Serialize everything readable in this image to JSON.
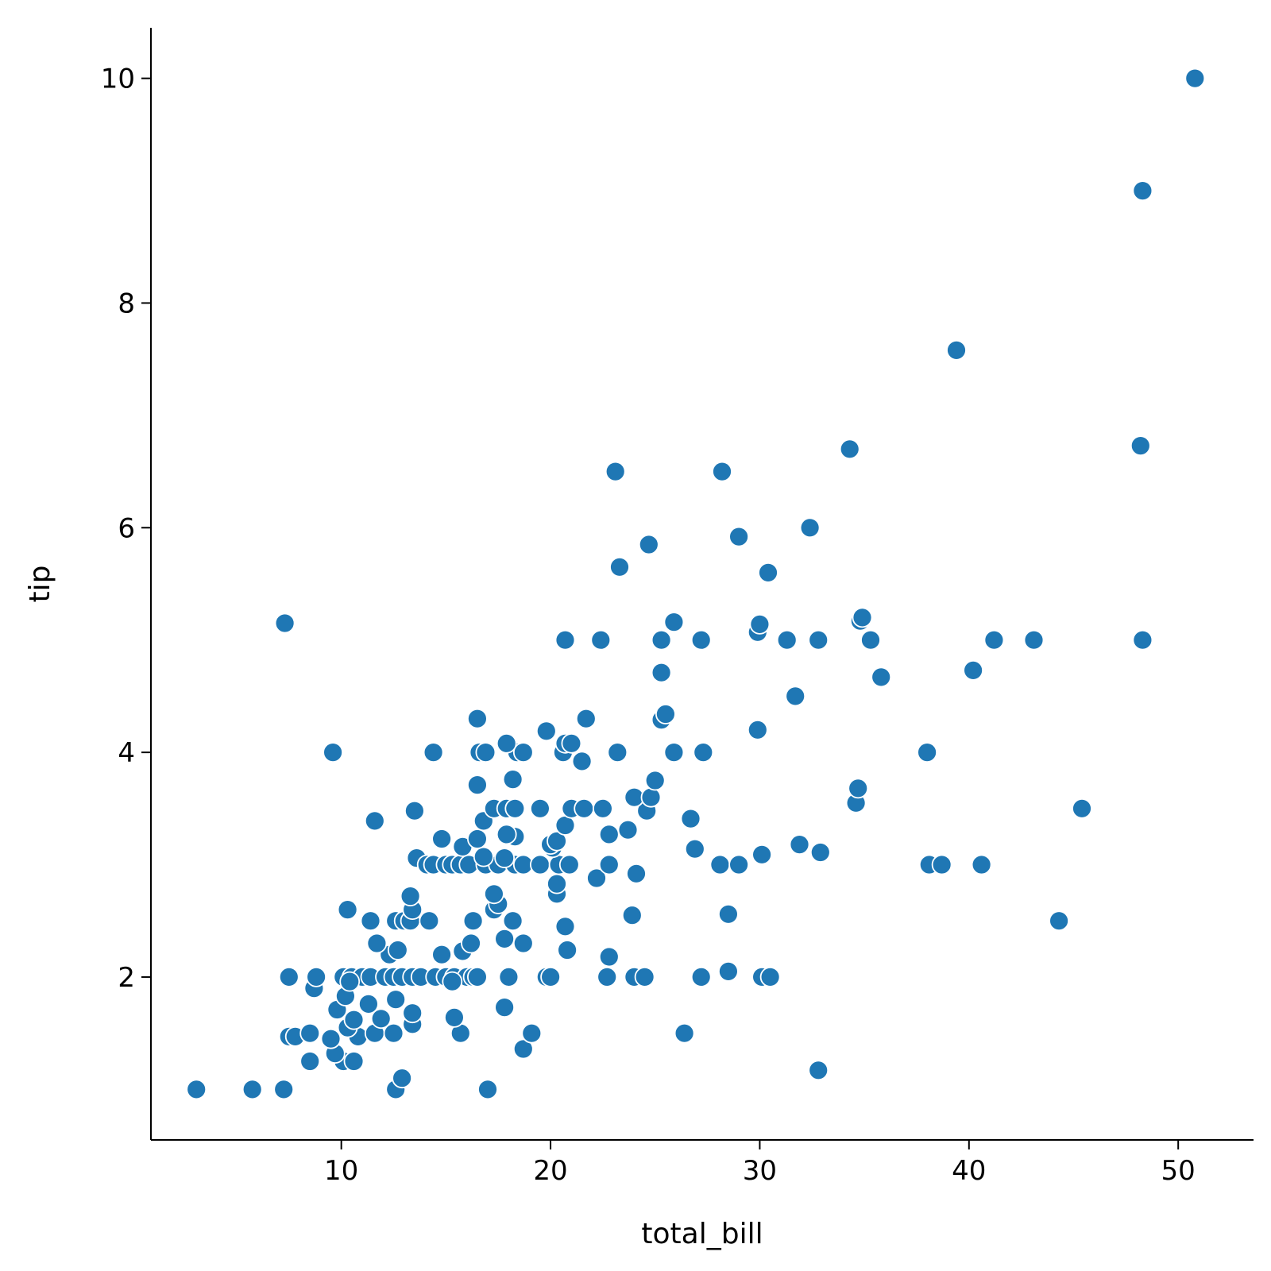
{
  "chart_data": {
    "type": "scatter",
    "title": "",
    "xlabel": "total_bill",
    "ylabel": "tip",
    "xlim": [
      0.9,
      53.6
    ],
    "ylim": [
      0.55,
      10.45
    ],
    "xticks": [
      10,
      20,
      30,
      40,
      50
    ],
    "yticks": [
      2,
      4,
      6,
      8,
      10
    ],
    "grid": false,
    "color": "#1f77b4",
    "points": [
      [
        3.07,
        1.0
      ],
      [
        5.75,
        1.0
      ],
      [
        7.25,
        1.0
      ],
      [
        12.6,
        1.0
      ],
      [
        17.0,
        1.0
      ],
      [
        32.8,
        1.17
      ],
      [
        12.9,
        1.1
      ],
      [
        18.7,
        1.36
      ],
      [
        8.5,
        1.25
      ],
      [
        10.1,
        1.25
      ],
      [
        10.6,
        1.25
      ],
      [
        9.7,
        1.32
      ],
      [
        9.5,
        1.45
      ],
      [
        7.5,
        1.47
      ],
      [
        7.8,
        1.47
      ],
      [
        8.5,
        1.5
      ],
      [
        10.8,
        1.47
      ],
      [
        11.6,
        1.5
      ],
      [
        12.5,
        1.5
      ],
      [
        15.7,
        1.5
      ],
      [
        19.1,
        1.5
      ],
      [
        26.4,
        1.5
      ],
      [
        10.3,
        1.55
      ],
      [
        10.6,
        1.62
      ],
      [
        11.9,
        1.63
      ],
      [
        15.4,
        1.64
      ],
      [
        13.4,
        1.58
      ],
      [
        13.4,
        1.68
      ],
      [
        9.8,
        1.71
      ],
      [
        11.3,
        1.76
      ],
      [
        12.6,
        1.8
      ],
      [
        17.8,
        1.73
      ],
      [
        10.2,
        1.83
      ],
      [
        8.7,
        1.9
      ],
      [
        7.5,
        2.0
      ],
      [
        8.8,
        2.0
      ],
      [
        10.1,
        2.0
      ],
      [
        10.5,
        2.0
      ],
      [
        11.0,
        2.0
      ],
      [
        11.4,
        2.0
      ],
      [
        12.1,
        2.0
      ],
      [
        12.5,
        2.0
      ],
      [
        12.9,
        2.0
      ],
      [
        13.4,
        2.0
      ],
      [
        13.8,
        2.0
      ],
      [
        14.5,
        2.0
      ],
      [
        15.0,
        2.0
      ],
      [
        15.4,
        2.0
      ],
      [
        16.0,
        2.0
      ],
      [
        16.3,
        2.0
      ],
      [
        16.5,
        2.0
      ],
      [
        18.0,
        2.0
      ],
      [
        19.8,
        2.0
      ],
      [
        20.0,
        2.0
      ],
      [
        22.7,
        2.0
      ],
      [
        24.0,
        2.0
      ],
      [
        24.5,
        2.0
      ],
      [
        27.2,
        2.0
      ],
      [
        30.1,
        2.0
      ],
      [
        30.5,
        2.0
      ],
      [
        15.3,
        1.96
      ],
      [
        28.5,
        2.05
      ],
      [
        10.4,
        1.96
      ],
      [
        14.8,
        2.2
      ],
      [
        15.8,
        2.23
      ],
      [
        12.3,
        2.2
      ],
      [
        12.7,
        2.24
      ],
      [
        20.8,
        2.24
      ],
      [
        22.8,
        2.18
      ],
      [
        11.7,
        2.3
      ],
      [
        16.2,
        2.3
      ],
      [
        18.7,
        2.3
      ],
      [
        17.8,
        2.34
      ],
      [
        20.7,
        2.45
      ],
      [
        11.4,
        2.5
      ],
      [
        12.6,
        2.5
      ],
      [
        13.0,
        2.5
      ],
      [
        13.3,
        2.5
      ],
      [
        14.2,
        2.5
      ],
      [
        16.3,
        2.5
      ],
      [
        18.2,
        2.5
      ],
      [
        23.9,
        2.55
      ],
      [
        28.5,
        2.56
      ],
      [
        44.3,
        2.5
      ],
      [
        10.3,
        2.6
      ],
      [
        13.4,
        2.6
      ],
      [
        17.3,
        2.6
      ],
      [
        17.5,
        2.65
      ],
      [
        13.3,
        2.72
      ],
      [
        17.3,
        2.74
      ],
      [
        20.3,
        2.74
      ],
      [
        20.3,
        2.83
      ],
      [
        22.2,
        2.88
      ],
      [
        24.1,
        2.92
      ],
      [
        13.6,
        3.06
      ],
      [
        14.1,
        3.0
      ],
      [
        14.4,
        3.0
      ],
      [
        15.0,
        3.0
      ],
      [
        15.3,
        3.0
      ],
      [
        15.7,
        3.0
      ],
      [
        16.1,
        3.0
      ],
      [
        16.9,
        3.0
      ],
      [
        17.5,
        3.0
      ],
      [
        18.3,
        3.0
      ],
      [
        18.7,
        3.0
      ],
      [
        19.5,
        3.0
      ],
      [
        20.4,
        3.0
      ],
      [
        20.9,
        3.0
      ],
      [
        22.8,
        3.0
      ],
      [
        28.1,
        3.0
      ],
      [
        29.0,
        3.0
      ],
      [
        38.1,
        3.0
      ],
      [
        38.7,
        3.0
      ],
      [
        40.6,
        3.0
      ],
      [
        16.8,
        3.07
      ],
      [
        17.8,
        3.06
      ],
      [
        26.9,
        3.14
      ],
      [
        30.1,
        3.09
      ],
      [
        32.9,
        3.11
      ],
      [
        20.1,
        3.15
      ],
      [
        15.8,
        3.16
      ],
      [
        16.5,
        3.23
      ],
      [
        20.0,
        3.18
      ],
      [
        20.3,
        3.21
      ],
      [
        31.9,
        3.18
      ],
      [
        14.8,
        3.23
      ],
      [
        18.3,
        3.25
      ],
      [
        22.8,
        3.27
      ],
      [
        17.9,
        3.27
      ],
      [
        23.7,
        3.31
      ],
      [
        20.7,
        3.35
      ],
      [
        16.8,
        3.39
      ],
      [
        26.7,
        3.41
      ],
      [
        11.6,
        3.39
      ],
      [
        13.5,
        3.48
      ],
      [
        17.3,
        3.5
      ],
      [
        17.9,
        3.5
      ],
      [
        18.3,
        3.5
      ],
      [
        19.5,
        3.5
      ],
      [
        21.0,
        3.5
      ],
      [
        21.6,
        3.5
      ],
      [
        22.5,
        3.5
      ],
      [
        24.6,
        3.48
      ],
      [
        45.4,
        3.5
      ],
      [
        24.0,
        3.6
      ],
      [
        24.8,
        3.6
      ],
      [
        34.6,
        3.55
      ],
      [
        34.7,
        3.68
      ],
      [
        16.5,
        3.71
      ],
      [
        18.2,
        3.76
      ],
      [
        25.0,
        3.75
      ],
      [
        21.5,
        3.92
      ],
      [
        9.6,
        4.0
      ],
      [
        14.4,
        4.0
      ],
      [
        16.6,
        4.0
      ],
      [
        16.9,
        4.0
      ],
      [
        18.4,
        4.0
      ],
      [
        18.7,
        4.0
      ],
      [
        20.6,
        4.0
      ],
      [
        23.2,
        4.0
      ],
      [
        25.9,
        4.0
      ],
      [
        27.3,
        4.0
      ],
      [
        38.0,
        4.0
      ],
      [
        17.9,
        4.08
      ],
      [
        20.7,
        4.08
      ],
      [
        21.0,
        4.08
      ],
      [
        19.8,
        4.19
      ],
      [
        29.9,
        4.2
      ],
      [
        16.5,
        4.3
      ],
      [
        21.7,
        4.3
      ],
      [
        25.3,
        4.29
      ],
      [
        25.5,
        4.34
      ],
      [
        31.7,
        4.5
      ],
      [
        35.8,
        4.67
      ],
      [
        25.3,
        4.71
      ],
      [
        40.2,
        4.73
      ],
      [
        20.7,
        5.0
      ],
      [
        22.4,
        5.0
      ],
      [
        25.3,
        5.0
      ],
      [
        27.2,
        5.0
      ],
      [
        31.3,
        5.0
      ],
      [
        32.8,
        5.0
      ],
      [
        35.3,
        5.0
      ],
      [
        41.2,
        5.0
      ],
      [
        43.1,
        5.0
      ],
      [
        48.3,
        5.0
      ],
      [
        29.9,
        5.07
      ],
      [
        30.0,
        5.14
      ],
      [
        7.3,
        5.15
      ],
      [
        25.9,
        5.16
      ],
      [
        34.8,
        5.17
      ],
      [
        34.9,
        5.2
      ],
      [
        23.3,
        5.65
      ],
      [
        30.4,
        5.6
      ],
      [
        24.7,
        5.85
      ],
      [
        29.0,
        5.92
      ],
      [
        32.4,
        6.0
      ],
      [
        23.1,
        6.5
      ],
      [
        28.2,
        6.5
      ],
      [
        34.3,
        6.7
      ],
      [
        48.2,
        6.73
      ],
      [
        39.4,
        7.58
      ],
      [
        48.3,
        9.0
      ],
      [
        50.8,
        10.0
      ]
    ]
  }
}
